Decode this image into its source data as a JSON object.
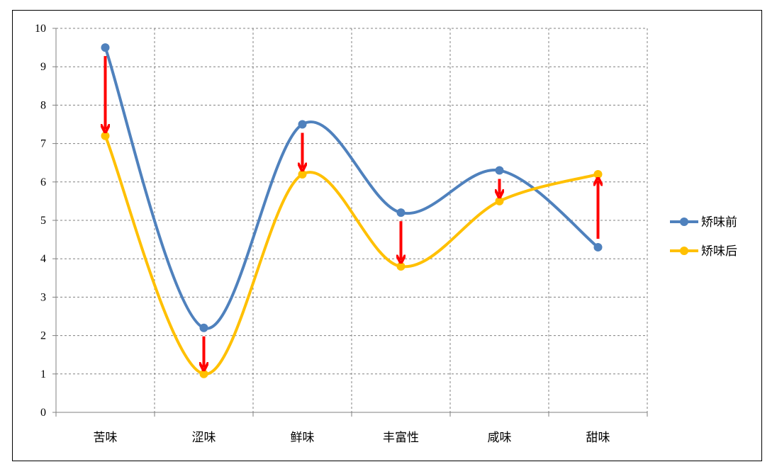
{
  "chart_data": {
    "type": "line",
    "categories": [
      "苦味",
      "涩味",
      "鲜味",
      "丰富性",
      "咸味",
      "甜味"
    ],
    "series": [
      {
        "name": "矫味前",
        "color": "#4F81BD",
        "values": [
          9.5,
          2.2,
          7.5,
          5.2,
          6.3,
          4.3
        ]
      },
      {
        "name": "矫味后",
        "color": "#FFC000",
        "values": [
          7.2,
          1.0,
          6.2,
          3.8,
          5.5,
          6.2
        ]
      }
    ],
    "ylim": [
      0,
      10
    ],
    "yticks": [
      "0",
      "1",
      "2",
      "3",
      "4",
      "5",
      "6",
      "7",
      "8",
      "9",
      "10"
    ],
    "grid": true,
    "legend": "right",
    "arrow_color": "#FF0000",
    "smooth": true
  }
}
